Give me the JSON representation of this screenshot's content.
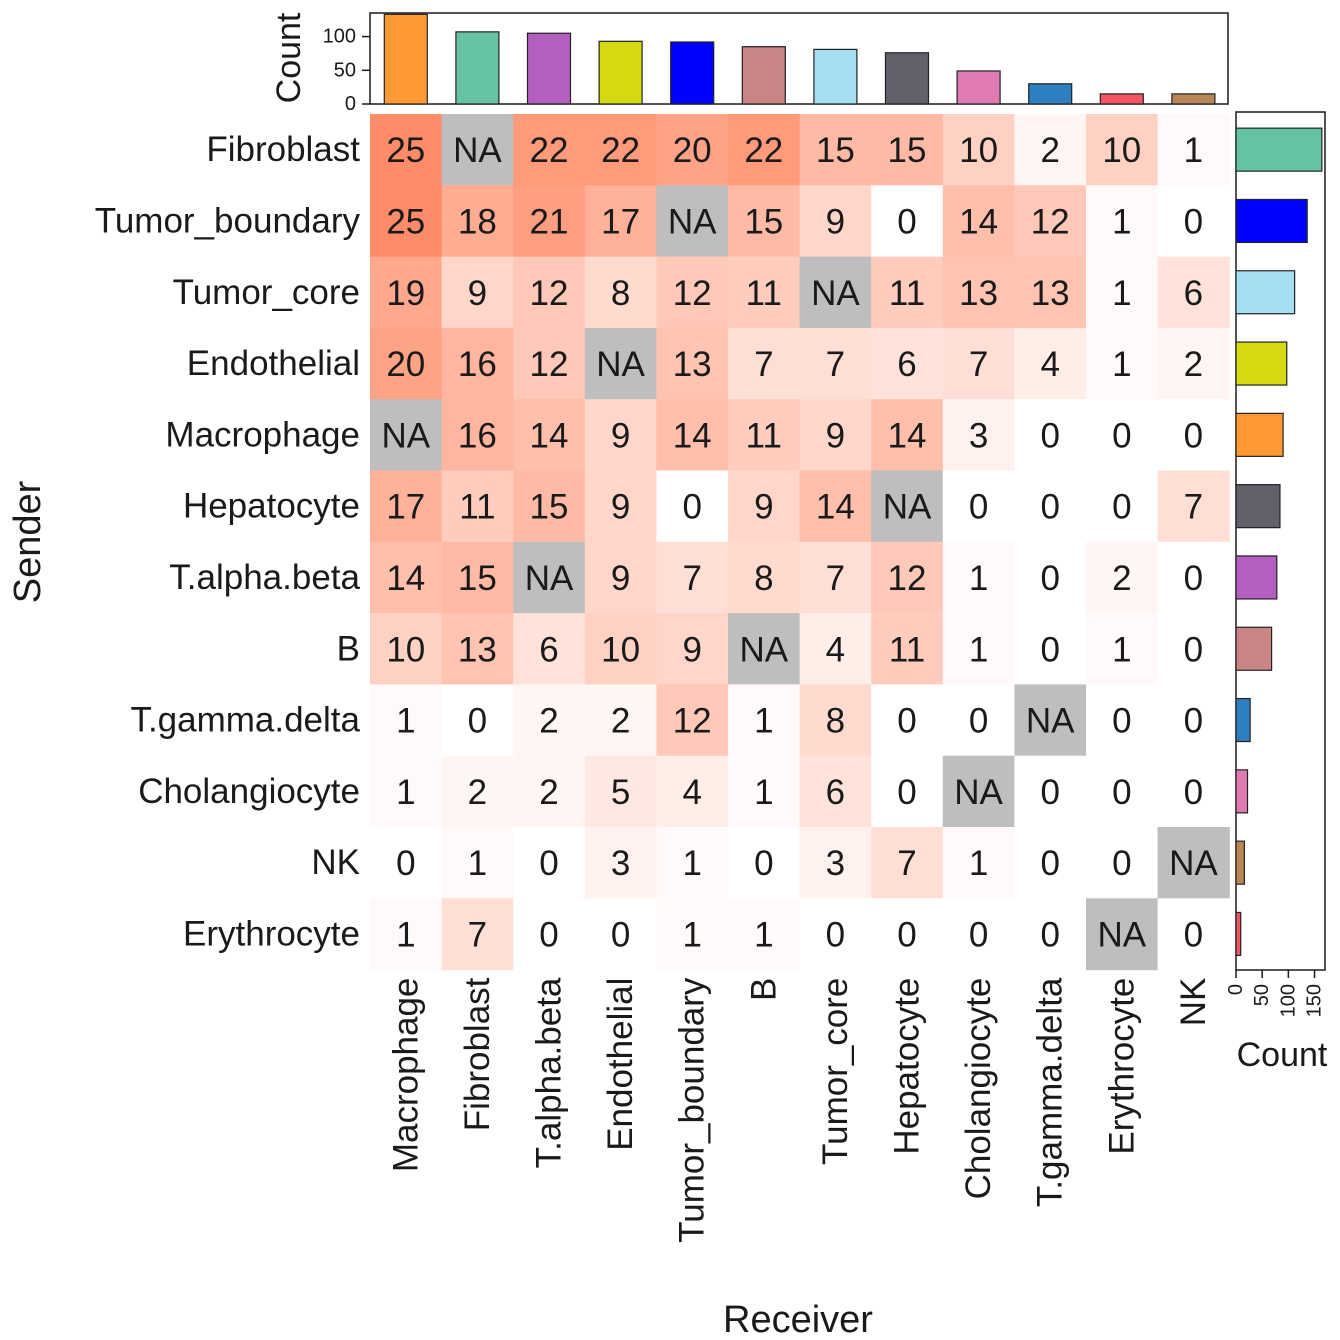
{
  "chart_data": {
    "type": "heatmap",
    "xlabel": "Receiver",
    "ylabel": "Sender",
    "receivers": [
      "Macrophage",
      "Fibroblast",
      "T.alpha.beta",
      "Endothelial",
      "Tumor_boundary",
      "B",
      "Tumor_core",
      "Hepatocyte",
      "Cholangiocyte",
      "T.gamma.delta",
      "Erythrocyte",
      "NK"
    ],
    "senders": [
      "Fibroblast",
      "Tumor_boundary",
      "Tumor_core",
      "Endothelial",
      "Macrophage",
      "Hepatocyte",
      "T.alpha.beta",
      "B",
      "T.gamma.delta",
      "Cholangiocyte",
      "NK",
      "Erythrocyte"
    ],
    "matrix": [
      [
        25,
        "NA",
        22,
        22,
        20,
        22,
        15,
        15,
        10,
        2,
        10,
        1
      ],
      [
        25,
        18,
        21,
        17,
        "NA",
        15,
        9,
        0,
        14,
        12,
        1,
        0
      ],
      [
        19,
        9,
        12,
        8,
        12,
        11,
        "NA",
        11,
        13,
        13,
        1,
        6
      ],
      [
        20,
        16,
        12,
        "NA",
        13,
        7,
        7,
        6,
        7,
        4,
        1,
        2
      ],
      [
        "NA",
        16,
        14,
        9,
        14,
        11,
        9,
        14,
        3,
        0,
        0,
        0
      ],
      [
        17,
        11,
        15,
        9,
        0,
        9,
        14,
        "NA",
        0,
        0,
        0,
        7
      ],
      [
        14,
        15,
        "NA",
        9,
        7,
        8,
        7,
        12,
        1,
        0,
        2,
        0
      ],
      [
        10,
        13,
        6,
        10,
        9,
        "NA",
        4,
        11,
        1,
        0,
        1,
        0
      ],
      [
        1,
        0,
        2,
        2,
        12,
        1,
        8,
        0,
        0,
        "NA",
        0,
        0
      ],
      [
        1,
        2,
        2,
        5,
        4,
        1,
        6,
        0,
        "NA",
        0,
        0,
        0
      ],
      [
        0,
        1,
        0,
        3,
        1,
        0,
        3,
        7,
        1,
        0,
        0,
        "NA"
      ],
      [
        1,
        7,
        0,
        0,
        1,
        1,
        0,
        0,
        0,
        0,
        "NA",
        0
      ]
    ],
    "na_color": "#bebebe",
    "color_low": "#ffffff",
    "color_high": "#ff8c69",
    "value_range": [
      0,
      25
    ],
    "top_barplot": {
      "ylabel": "Count",
      "ticks": [
        0,
        50,
        100
      ],
      "ylim": [
        0,
        135
      ],
      "values": [
        133,
        107,
        105,
        93,
        92,
        85,
        81,
        76,
        49,
        30,
        15,
        15
      ],
      "colors": [
        "#ff9933",
        "#66c2a5",
        "#b35fbf",
        "#d4d911",
        "#0000ff",
        "#c98585",
        "#a6def2",
        "#61616b",
        "#e07ab3",
        "#2e7fbf",
        "#f25563",
        "#b88755"
      ]
    },
    "right_barplot": {
      "xlabel": "Count",
      "ticks": [
        0,
        50,
        100,
        150
      ],
      "xlim": [
        0,
        170
      ],
      "values": [
        164,
        136,
        112,
        97,
        90,
        84,
        78,
        68,
        27,
        22,
        16,
        9
      ],
      "colors": [
        "#66c2a5",
        "#0000ff",
        "#a6def2",
        "#d4d911",
        "#ff9933",
        "#61616b",
        "#b35fbf",
        "#c98585",
        "#2e7fbf",
        "#e07ab3",
        "#b88755",
        "#f25563"
      ]
    }
  }
}
